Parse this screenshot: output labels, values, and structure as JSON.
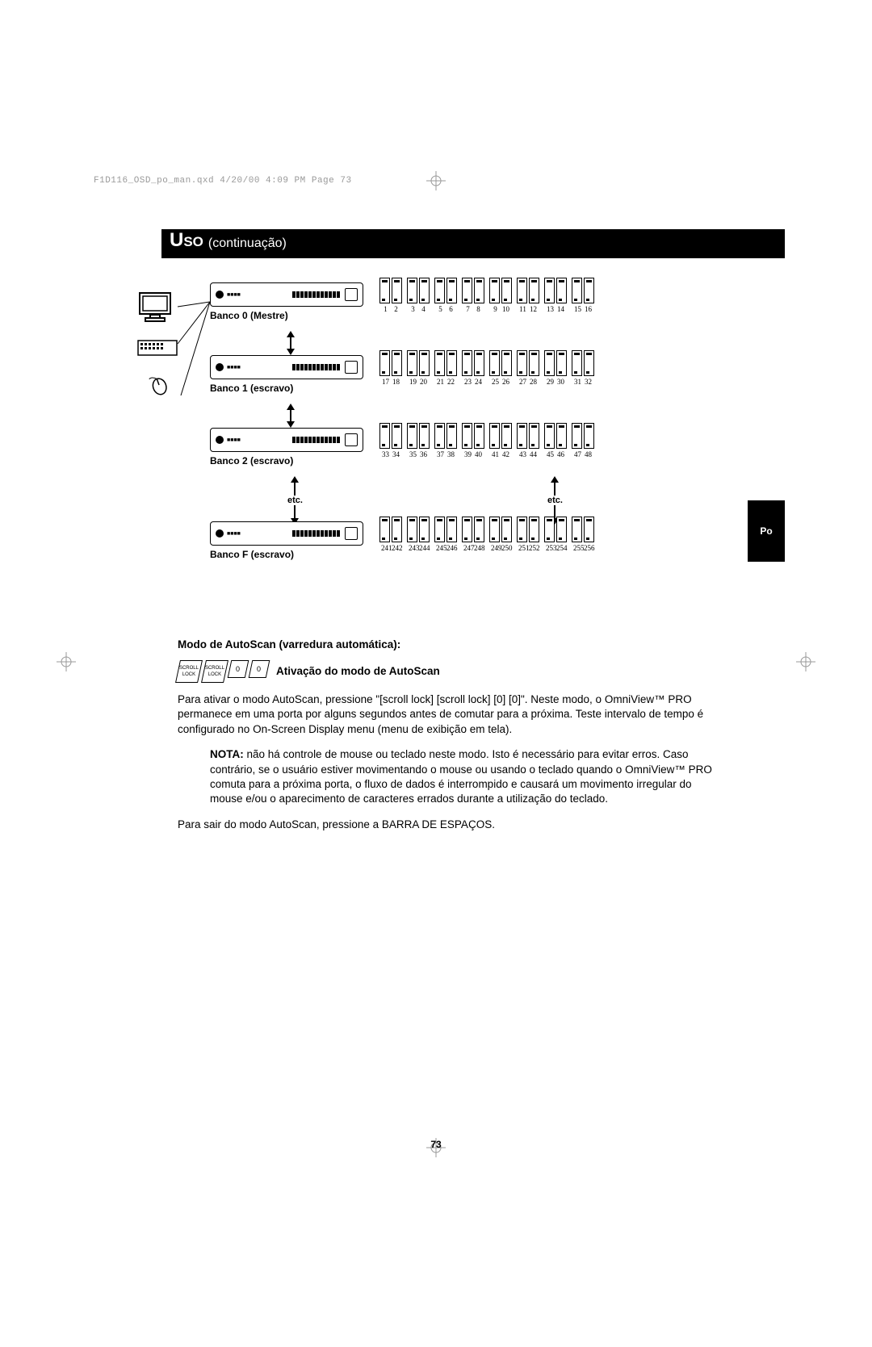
{
  "meta": {
    "header": "F1D116_OSD_po_man.qxd  4/20/00  4:09 PM  Page 73",
    "page_number": "73",
    "lang_tab": "Po"
  },
  "title": {
    "main": "Uso",
    "sub": "(continuação)"
  },
  "banks": [
    {
      "label": "Banco 0 (Mestre)",
      "nums": [
        "1",
        "2",
        "3",
        "4",
        "5",
        "6",
        "7",
        "8",
        "9",
        "10",
        "11",
        "12",
        "13",
        "14",
        "15",
        "16"
      ]
    },
    {
      "label": "Banco 1 (escravo)",
      "nums": [
        "17",
        "18",
        "19",
        "20",
        "21",
        "22",
        "23",
        "24",
        "25",
        "26",
        "27",
        "28",
        "29",
        "30",
        "31",
        "32"
      ]
    },
    {
      "label": "Banco 2 (escravo)",
      "nums": [
        "33",
        "34",
        "35",
        "36",
        "37",
        "38",
        "39",
        "40",
        "41",
        "42",
        "43",
        "44",
        "45",
        "46",
        "47",
        "48"
      ]
    },
    {
      "label": "Banco F (escravo)",
      "nums": [
        "241",
        "242",
        "243",
        "244",
        "245",
        "246",
        "247",
        "248",
        "249",
        "250",
        "251",
        "252",
        "253",
        "254",
        "255",
        "256"
      ]
    }
  ],
  "etc": "etc.",
  "section_heading": "Modo de AutoScan (varredura automática):",
  "activation_title": "Ativação do modo de AutoScan",
  "keys": [
    "SCROLL LOCK",
    "SCROLL LOCK",
    "0",
    "0"
  ],
  "paragraph1": "Para ativar o modo AutoScan, pressione \"[scroll lock] [scroll lock] [0] [0]\". Neste modo, o OmniView™ PRO permanece em uma porta por alguns segundos antes de comutar para a próxima. Teste intervalo de tempo é configurado no On-Screen Display menu (menu de exibição em tela).",
  "nota_label": "NOTA:",
  "nota_text": " não há controle de mouse ou teclado neste modo. Isto é necessário para evitar erros. Caso contrário, se o usuário estiver movimentando o mouse ou usando o teclado quando o OmniView™ PRO comuta para a próxima porta, o fluxo de dados é interrompido e causará um movimento irregular do mouse e/ou o aparecimento de caracteres errados durante a utilização do teclado.",
  "paragraph2": "Para sair do modo AutoScan, pressione a BARRA DE ESPAÇOS."
}
